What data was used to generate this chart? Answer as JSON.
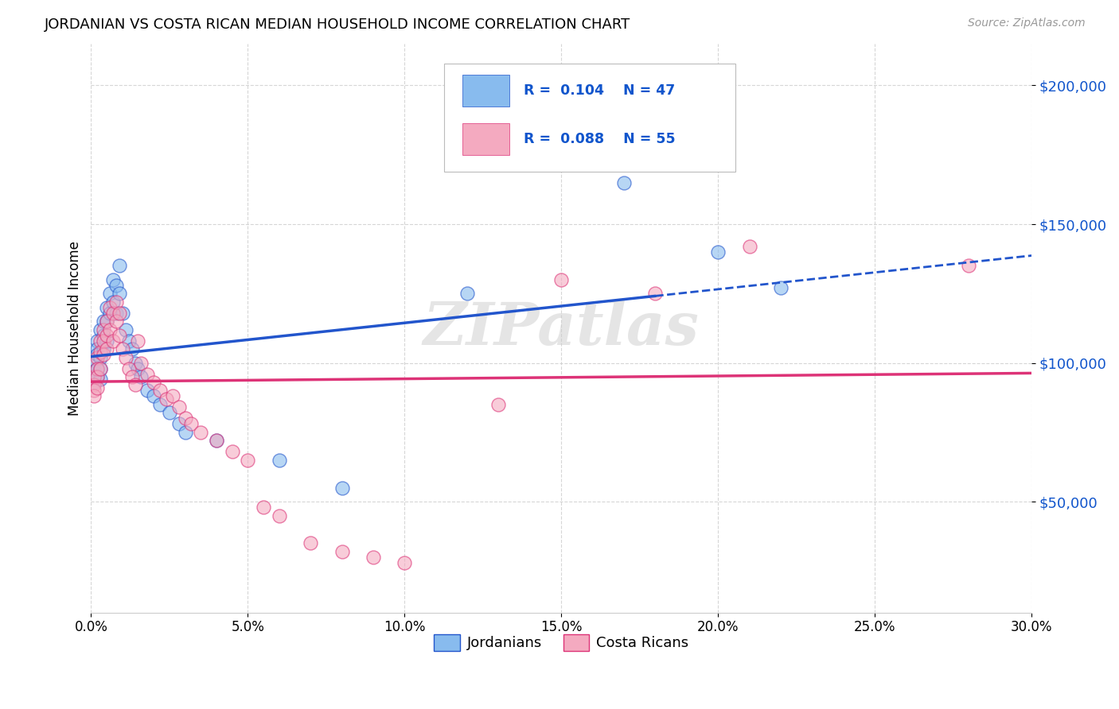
{
  "title": "JORDANIAN VS COSTA RICAN MEDIAN HOUSEHOLD INCOME CORRELATION CHART",
  "source": "Source: ZipAtlas.com",
  "ylabel": "Median Household Income",
  "ytick_labels": [
    "$50,000",
    "$100,000",
    "$150,000",
    "$200,000"
  ],
  "ytick_values": [
    50000,
    100000,
    150000,
    200000
  ],
  "ymin": 10000,
  "ymax": 215000,
  "xmin": 0.0,
  "xmax": 0.3,
  "xtick_values": [
    0.0,
    0.05,
    0.1,
    0.15,
    0.2,
    0.25,
    0.3
  ],
  "xtick_labels": [
    "0.0%",
    "5.0%",
    "10.0%",
    "15.0%",
    "20.0%",
    "25.0%",
    "30.0%"
  ],
  "legend_label1": "Jordanians",
  "legend_label2": "Costa Ricans",
  "color_blue": "#88bbee",
  "color_pink": "#f4aac0",
  "color_blue_line": "#2255cc",
  "color_pink_line": "#dd3377",
  "color_blue_text": "#1155cc",
  "watermark": "ZIPatlas",
  "jordanians_x": [
    0.001,
    0.001,
    0.001,
    0.001,
    0.002,
    0.002,
    0.002,
    0.002,
    0.002,
    0.003,
    0.003,
    0.003,
    0.003,
    0.004,
    0.004,
    0.004,
    0.005,
    0.005,
    0.005,
    0.006,
    0.006,
    0.007,
    0.007,
    0.008,
    0.008,
    0.009,
    0.009,
    0.01,
    0.011,
    0.012,
    0.013,
    0.014,
    0.015,
    0.016,
    0.018,
    0.02,
    0.022,
    0.025,
    0.028,
    0.03,
    0.04,
    0.06,
    0.08,
    0.12,
    0.17,
    0.2,
    0.22
  ],
  "jordanians_y": [
    100000,
    97000,
    95000,
    93000,
    108000,
    105000,
    103000,
    98000,
    95000,
    112000,
    102000,
    98000,
    94000,
    115000,
    110000,
    105000,
    120000,
    115000,
    108000,
    125000,
    118000,
    130000,
    122000,
    128000,
    118000,
    135000,
    125000,
    118000,
    112000,
    108000,
    105000,
    100000,
    98000,
    95000,
    90000,
    88000,
    85000,
    82000,
    78000,
    75000,
    72000,
    65000,
    55000,
    125000,
    165000,
    140000,
    127000
  ],
  "costa_ricans_x": [
    0.001,
    0.001,
    0.001,
    0.001,
    0.002,
    0.002,
    0.002,
    0.002,
    0.003,
    0.003,
    0.003,
    0.004,
    0.004,
    0.004,
    0.005,
    0.005,
    0.005,
    0.006,
    0.006,
    0.007,
    0.007,
    0.008,
    0.008,
    0.009,
    0.009,
    0.01,
    0.011,
    0.012,
    0.013,
    0.014,
    0.015,
    0.016,
    0.018,
    0.02,
    0.022,
    0.024,
    0.026,
    0.028,
    0.03,
    0.032,
    0.035,
    0.04,
    0.045,
    0.05,
    0.055,
    0.06,
    0.07,
    0.08,
    0.09,
    0.1,
    0.13,
    0.15,
    0.18,
    0.21,
    0.28
  ],
  "costa_ricans_y": [
    95000,
    92000,
    90000,
    88000,
    102000,
    98000,
    95000,
    91000,
    108000,
    104000,
    98000,
    112000,
    108000,
    103000,
    115000,
    110000,
    105000,
    120000,
    112000,
    118000,
    108000,
    122000,
    115000,
    118000,
    110000,
    105000,
    102000,
    98000,
    95000,
    92000,
    108000,
    100000,
    96000,
    93000,
    90000,
    87000,
    88000,
    84000,
    80000,
    78000,
    75000,
    72000,
    68000,
    65000,
    48000,
    45000,
    35000,
    32000,
    30000,
    28000,
    85000,
    130000,
    125000,
    142000,
    135000
  ]
}
